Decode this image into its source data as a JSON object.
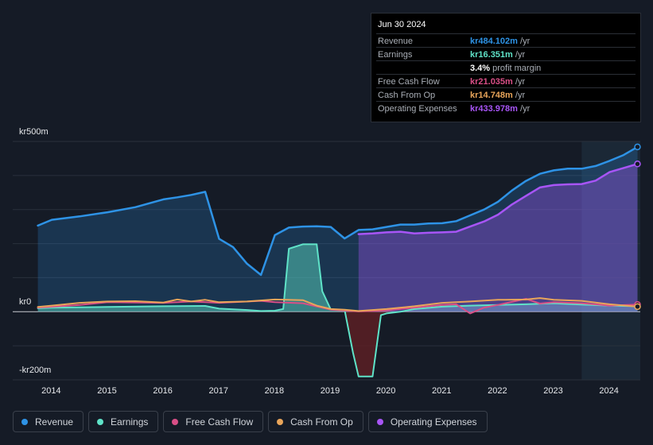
{
  "tooltip": {
    "date": "Jun 30 2024",
    "rows": [
      {
        "label": "Revenue",
        "value": "kr484.102m",
        "suffix": " /yr",
        "color": "#2e93e6"
      },
      {
        "label": "Earnings",
        "value": "kr16.351m",
        "suffix": " /yr",
        "color": "#5fe3c8"
      },
      {
        "label": "",
        "value": "3.4%",
        "suffix": " profit margin",
        "color": "#ffffff"
      },
      {
        "label": "Free Cash Flow",
        "value": "kr21.035m",
        "suffix": " /yr",
        "color": "#d94f87"
      },
      {
        "label": "Cash From Op",
        "value": "kr14.748m",
        "suffix": " /yr",
        "color": "#e9a55a"
      },
      {
        "label": "Operating Expenses",
        "value": "kr433.978m",
        "suffix": " /yr",
        "color": "#a855f7"
      }
    ]
  },
  "colors": {
    "revenue": "#2e93e6",
    "earnings": "#5fe3c8",
    "free_cash_flow": "#d94f87",
    "cash_from_op": "#e9a55a",
    "operating_expenses": "#a855f7",
    "background": "#151b26"
  },
  "legend": [
    {
      "label": "Revenue",
      "color": "#2e93e6"
    },
    {
      "label": "Earnings",
      "color": "#5fe3c8"
    },
    {
      "label": "Free Cash Flow",
      "color": "#d94f87"
    },
    {
      "label": "Cash From Op",
      "color": "#e9a55a"
    },
    {
      "label": "Operating Expenses",
      "color": "#a855f7"
    }
  ],
  "chart_data": {
    "type": "area",
    "y_axis_labels": [
      "kr500m",
      "kr0",
      "-kr200m"
    ],
    "ylim": [
      -200,
      500
    ],
    "xlim": [
      2013.3,
      2024.55
    ],
    "x_ticks": [
      "2014",
      "2015",
      "2016",
      "2017",
      "2018",
      "2019",
      "2020",
      "2021",
      "2022",
      "2023",
      "2024"
    ],
    "grid": true,
    "highlight_start": 2023.5,
    "series": [
      {
        "name": "Revenue",
        "x": [
          2013.75,
          2014.0,
          2014.5,
          2015.0,
          2015.5,
          2016.0,
          2016.25,
          2016.5,
          2016.75,
          2017.0,
          2017.25,
          2017.5,
          2017.75,
          2018.0,
          2018.25,
          2018.5,
          2018.75,
          2019.0,
          2019.25,
          2019.5,
          2019.75,
          2020.0,
          2020.25,
          2020.5,
          2020.75,
          2021.0,
          2021.25,
          2021.5,
          2021.75,
          2022.0,
          2022.25,
          2022.5,
          2022.75,
          2023.0,
          2023.25,
          2023.5,
          2023.75,
          2024.0,
          2024.25,
          2024.5
        ],
        "values": [
          253,
          270,
          280,
          292,
          307,
          330,
          336,
          343,
          352,
          214,
          190,
          141,
          108,
          225,
          247,
          250,
          251,
          249,
          215,
          240,
          242,
          249,
          256,
          256,
          259,
          260,
          266,
          283,
          300,
          323,
          356,
          384,
          405,
          415,
          420,
          420,
          428,
          443,
          460,
          484
        ]
      },
      {
        "name": "Earnings",
        "x": [
          2013.75,
          2014.0,
          2015.0,
          2016.0,
          2016.75,
          2017.0,
          2017.5,
          2017.75,
          2018.0,
          2018.15,
          2018.25,
          2018.5,
          2018.75,
          2018.85,
          2019.0,
          2019.25,
          2019.4,
          2019.5,
          2019.6,
          2019.75,
          2019.9,
          2020.0,
          2020.25,
          2020.5,
          2021.0,
          2021.5,
          2022.0,
          2022.5,
          2023.0,
          2023.5,
          2024.0,
          2024.5
        ],
        "values": [
          10,
          12,
          14,
          16,
          17,
          9,
          5,
          2,
          3,
          8,
          185,
          198,
          198,
          60,
          7,
          5,
          -120,
          -190,
          -190,
          -190,
          -10,
          -5,
          0,
          8,
          15,
          18,
          20,
          22,
          25,
          21,
          18,
          16
        ]
      },
      {
        "name": "Free Cash Flow",
        "x": [
          2013.75,
          2014.5,
          2015.0,
          2016.0,
          2016.5,
          2017.0,
          2017.75,
          2018.0,
          2018.5,
          2019.0,
          2019.5,
          2020.0,
          2020.5,
          2021.0,
          2021.25,
          2021.5,
          2021.75,
          2022.0,
          2022.5,
          2022.75,
          2023.0,
          2023.5,
          2024.0,
          2024.5
        ],
        "values": [
          12,
          20,
          28,
          26,
          30,
          26,
          32,
          28,
          25,
          6,
          1,
          4,
          12,
          20,
          22,
          -5,
          12,
          20,
          38,
          24,
          28,
          25,
          18,
          21
        ]
      },
      {
        "name": "Cash From Op",
        "x": [
          2013.75,
          2014.0,
          2014.5,
          2015.0,
          2015.5,
          2016.0,
          2016.25,
          2016.5,
          2016.75,
          2017.0,
          2017.5,
          2017.75,
          2018.0,
          2018.5,
          2018.75,
          2019.0,
          2019.25,
          2019.5,
          2020.0,
          2020.5,
          2021.0,
          2021.5,
          2022.0,
          2022.5,
          2022.75,
          2023.0,
          2023.5,
          2024.0,
          2024.5
        ],
        "values": [
          14,
          18,
          26,
          30,
          31,
          27,
          36,
          30,
          35,
          28,
          30,
          33,
          36,
          34,
          18,
          8,
          6,
          2,
          8,
          16,
          26,
          30,
          35,
          36,
          40,
          35,
          32,
          22,
          15
        ]
      },
      {
        "name": "Operating Expenses",
        "x": [
          2019.5,
          2019.75,
          2020.0,
          2020.25,
          2020.5,
          2020.75,
          2021.0,
          2021.25,
          2021.5,
          2021.75,
          2022.0,
          2022.25,
          2022.5,
          2022.75,
          2023.0,
          2023.25,
          2023.5,
          2023.75,
          2024.0,
          2024.25,
          2024.5
        ],
        "values": [
          228,
          230,
          233,
          235,
          230,
          232,
          233,
          235,
          250,
          265,
          285,
          315,
          340,
          365,
          372,
          374,
          375,
          385,
          410,
          422,
          434
        ]
      }
    ]
  }
}
